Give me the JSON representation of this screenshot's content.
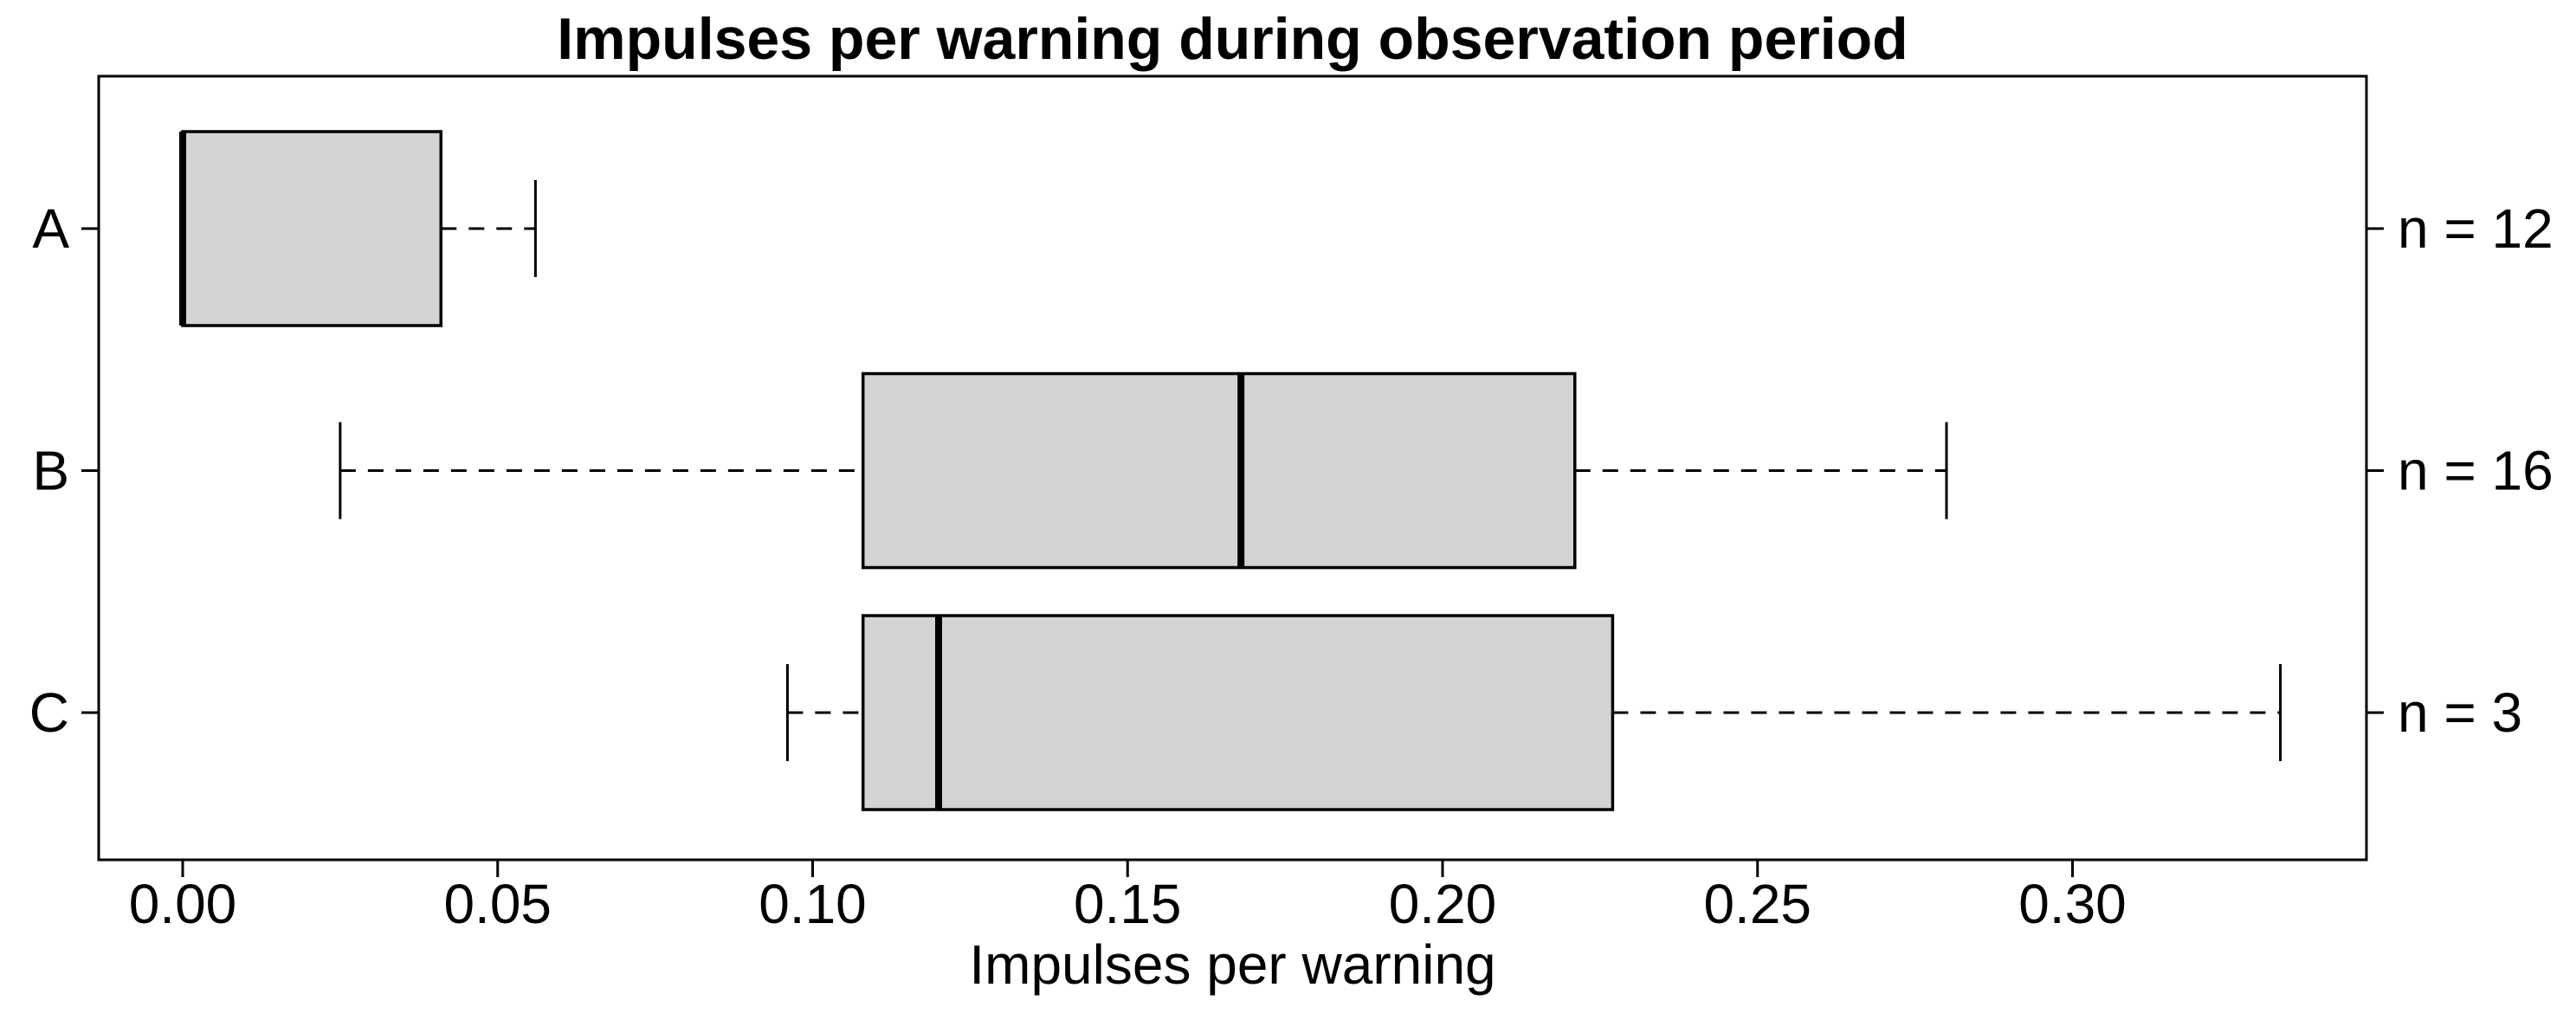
{
  "chart_data": {
    "type": "boxplot",
    "orientation": "horizontal",
    "title": "Impulses per warning during observation period",
    "xlabel": "Impulses per warning",
    "xlim": [
      -0.013333,
      0.346667
    ],
    "grid": false,
    "box_fill": "#d3d3d3",
    "line_color": "#000000",
    "x_ticks": [
      {
        "value": 0.0,
        "label": "0.00"
      },
      {
        "value": 0.05,
        "label": "0.05"
      },
      {
        "value": 0.1,
        "label": "0.10"
      },
      {
        "value": 0.15,
        "label": "0.15"
      },
      {
        "value": 0.2,
        "label": "0.20"
      },
      {
        "value": 0.25,
        "label": "0.25"
      },
      {
        "value": 0.3,
        "label": "0.30"
      }
    ],
    "series": [
      {
        "category": "A",
        "n": 12,
        "n_label": "n = 12",
        "min": 0.0,
        "q1": 0.0,
        "median": 0.0,
        "q3": 0.041,
        "max": 0.056
      },
      {
        "category": "B",
        "n": 16,
        "n_label": "n = 16",
        "min": 0.025,
        "q1": 0.108,
        "median": 0.168,
        "q3": 0.221,
        "max": 0.28
      },
      {
        "category": "C",
        "n": 3,
        "n_label": "n = 3",
        "min": 0.096,
        "q1": 0.108,
        "median": 0.12,
        "q3": 0.227,
        "max": 0.333
      }
    ]
  }
}
